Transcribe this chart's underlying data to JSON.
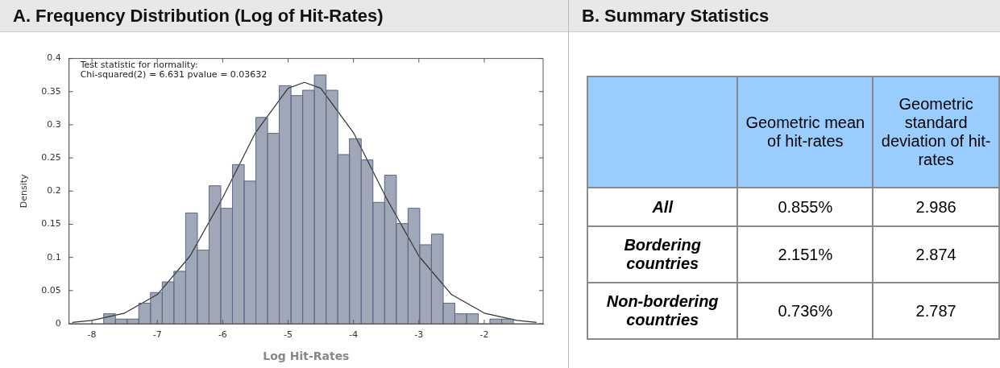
{
  "chart_data": [
    {
      "type": "histogram",
      "title": "A. Frequency Distribution (Log of Hit-Rates)",
      "xlabel": "Log Hit-Rates",
      "ylabel": "Density",
      "annotations": [
        "Test statistic for normality:",
        "Chi-squared(2) = 6.631 pvalue = 0.03632"
      ],
      "bins": [
        -7.82,
        -7.641,
        -7.462,
        -7.283,
        -7.104,
        -6.925,
        -6.746,
        -6.567,
        -6.388,
        -6.209,
        -6.03,
        -5.851,
        -5.672,
        -5.493,
        -5.314,
        -5.135,
        -4.956,
        -4.777,
        -4.598,
        -4.419,
        -4.24,
        -4.061,
        -3.882,
        -3.703,
        -3.524,
        -3.345,
        -3.166,
        -2.987,
        -2.808,
        -2.629,
        -2.45,
        -2.271,
        -2.092,
        -1.913,
        -1.734,
        -1.555
      ],
      "series": [
        {
          "type": "histogram",
          "color": "#a0a8b8",
          "values": [
            0.015,
            0.007,
            0.007,
            0.031,
            0.047,
            0.063,
            0.079,
            0.167,
            0.111,
            0.208,
            0.174,
            0.24,
            0.215,
            0.311,
            0.287,
            0.359,
            0.344,
            0.352,
            0.375,
            0.352,
            0.255,
            0.279,
            0.247,
            0.183,
            0.224,
            0.151,
            0.174,
            0.119,
            0.135,
            0.031,
            0.015,
            0.015,
            0,
            0.007,
            0.007
          ]
        },
        {
          "type": "line",
          "color": "#333333",
          "marker": "none",
          "x": [
            -8.3,
            -8,
            -7.5,
            -7,
            -6.5,
            -6,
            -5.5,
            -5,
            -4.75,
            -4.5,
            -4,
            -3.5,
            -3,
            -2.5,
            -2,
            -1.5,
            -1.2
          ],
          "values": [
            0.002,
            0.005,
            0.016,
            0.044,
            0.102,
            0.19,
            0.288,
            0.355,
            0.364,
            0.355,
            0.288,
            0.19,
            0.102,
            0.044,
            0.016,
            0.005,
            0.002
          ]
        }
      ],
      "xlim": [
        -8.35,
        -1.1
      ],
      "xticks": [
        -8,
        -7,
        -6,
        -5,
        -4,
        -3,
        -2
      ],
      "ylim": [
        0,
        0.4
      ],
      "yticks": [
        0,
        0.05,
        0.1,
        0.15,
        0.2,
        0.25,
        0.3,
        0.35,
        0.4
      ]
    },
    {
      "type": "other",
      "title": "B. Summary Statistics",
      "categories": [
        null,
        "Geometric mean of hit-rates",
        "Geometric standard deviation of hit-rates"
      ],
      "y_categories": [
        "All",
        "Bordering countries",
        "Non-bordering countries"
      ],
      "cell_labels": [
        [
          "0.855%",
          "2.986"
        ],
        [
          "2.151%",
          "2.874"
        ],
        [
          "0.736%",
          "2.787"
        ]
      ]
    }
  ]
}
